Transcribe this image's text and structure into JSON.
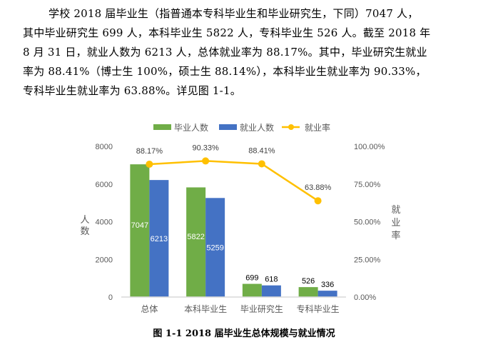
{
  "paragraph": {
    "lines": [
      "学校 2018 届毕业生（指普通本专科毕业生和毕业研究生，下同）7047 人，",
      "其中毕业研究生 699 人，本科毕业生 5822 人，专科毕业生 526 人。截至 2018 年",
      "8 月 31 日，就业人数为 6213 人，总体就业率为 88.17%。其中，毕业研究生就业",
      "率为 88.41%（博士生 100%，硕士生 88.14%），本科毕业生就业率为 90.33%，",
      "专科毕业生就业率为 63.88%。详见图 1-1。"
    ]
  },
  "chart_data": {
    "type": "bar",
    "title": "",
    "categories": [
      "总体",
      "本科毕业生",
      "毕业研究生",
      "专科毕业生"
    ],
    "series": [
      {
        "name": "毕业人数",
        "type": "bar",
        "axis": "left",
        "color": "#70ad47",
        "values": [
          7047,
          5822,
          699,
          526
        ],
        "labels": [
          "7047",
          "5822",
          "699",
          "526"
        ]
      },
      {
        "name": "就业人数",
        "type": "bar",
        "axis": "left",
        "color": "#4472c4",
        "values": [
          6213,
          5259,
          618,
          336
        ],
        "labels": [
          "6213",
          "5259",
          "618",
          "336"
        ]
      },
      {
        "name": "就业率",
        "type": "line",
        "axis": "right",
        "color": "#ffc000",
        "values": [
          88.17,
          90.33,
          88.41,
          63.88
        ],
        "labels": [
          "88.17%",
          "90.33%",
          "88.41%",
          "63.88%"
        ]
      }
    ],
    "ylabel": "人数",
    "y2label": "就业率",
    "ylim": [
      0,
      8000
    ],
    "y2lim": [
      0,
      100
    ],
    "yticks": [
      "0",
      "2000",
      "4000",
      "6000",
      "8000"
    ],
    "y2ticks": [
      "0.00%",
      "25.00%",
      "50.00%",
      "75.00%",
      "100.00%"
    ],
    "grid": false,
    "legend": "top"
  },
  "caption": "图 1-1    2018 届毕业生总体规模与就业情况"
}
